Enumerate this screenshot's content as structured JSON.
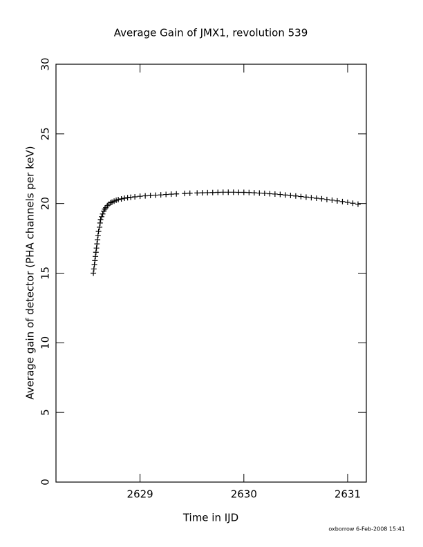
{
  "chart_data": {
    "type": "scatter",
    "title": "Average Gain of JMX1, revolution 539",
    "x_label": "Time in IJD",
    "y_label": "Average gain of detector (PHA channels per keV)",
    "footer": "oxborrow  6-Feb-2008 15:41",
    "marker": "+",
    "color": "#000000",
    "xlim": [
      2628.19,
      2631.18
    ],
    "xticks": [
      2629,
      2630,
      2631
    ],
    "ylim": [
      0,
      30
    ],
    "yticks": [
      0,
      5,
      10,
      15,
      20,
      25,
      30
    ],
    "x": [
      2628.55,
      2628.555,
      2628.56,
      2628.565,
      2628.57,
      2628.575,
      2628.58,
      2628.585,
      2628.59,
      2628.595,
      2628.6,
      2628.61,
      2628.615,
      2628.62,
      2628.63,
      2628.64,
      2628.65,
      2628.66,
      2628.67,
      2628.685,
      2628.7,
      2628.715,
      2628.73,
      2628.75,
      2628.77,
      2628.79,
      2628.82,
      2628.85,
      2628.88,
      2628.91,
      2628.95,
      2629.0,
      2629.05,
      2629.1,
      2629.15,
      2629.2,
      2629.25,
      2629.3,
      2629.35,
      2629.43,
      2629.48,
      2629.55,
      2629.6,
      2629.65,
      2629.7,
      2629.75,
      2629.8,
      2629.85,
      2629.9,
      2629.95,
      2630.0,
      2630.05,
      2630.1,
      2630.15,
      2630.2,
      2630.25,
      2630.3,
      2630.35,
      2630.4,
      2630.45,
      2630.5,
      2630.55,
      2630.6,
      2630.65,
      2630.7,
      2630.75,
      2630.8,
      2630.85,
      2630.9,
      2630.95,
      2631.0,
      2631.05,
      2631.1
    ],
    "values": [
      15.0,
      15.3,
      15.6,
      15.9,
      16.2,
      16.5,
      16.8,
      17.1,
      17.4,
      17.7,
      18.0,
      18.3,
      18.6,
      18.85,
      19.05,
      19.25,
      19.45,
      19.6,
      19.7,
      19.85,
      19.95,
      20.05,
      20.1,
      20.17,
      20.23,
      20.28,
      20.33,
      20.38,
      20.42,
      20.45,
      20.48,
      20.52,
      20.55,
      20.58,
      20.6,
      20.62,
      20.65,
      20.67,
      20.69,
      20.72,
      20.74,
      20.76,
      20.77,
      20.78,
      20.79,
      20.8,
      20.81,
      20.81,
      20.81,
      20.8,
      20.8,
      20.79,
      20.77,
      20.75,
      20.73,
      20.7,
      20.68,
      20.65,
      20.61,
      20.58,
      20.54,
      20.5,
      20.46,
      20.42,
      20.38,
      20.34,
      20.29,
      20.24,
      20.19,
      20.14,
      20.08,
      20.02,
      19.95
    ]
  }
}
